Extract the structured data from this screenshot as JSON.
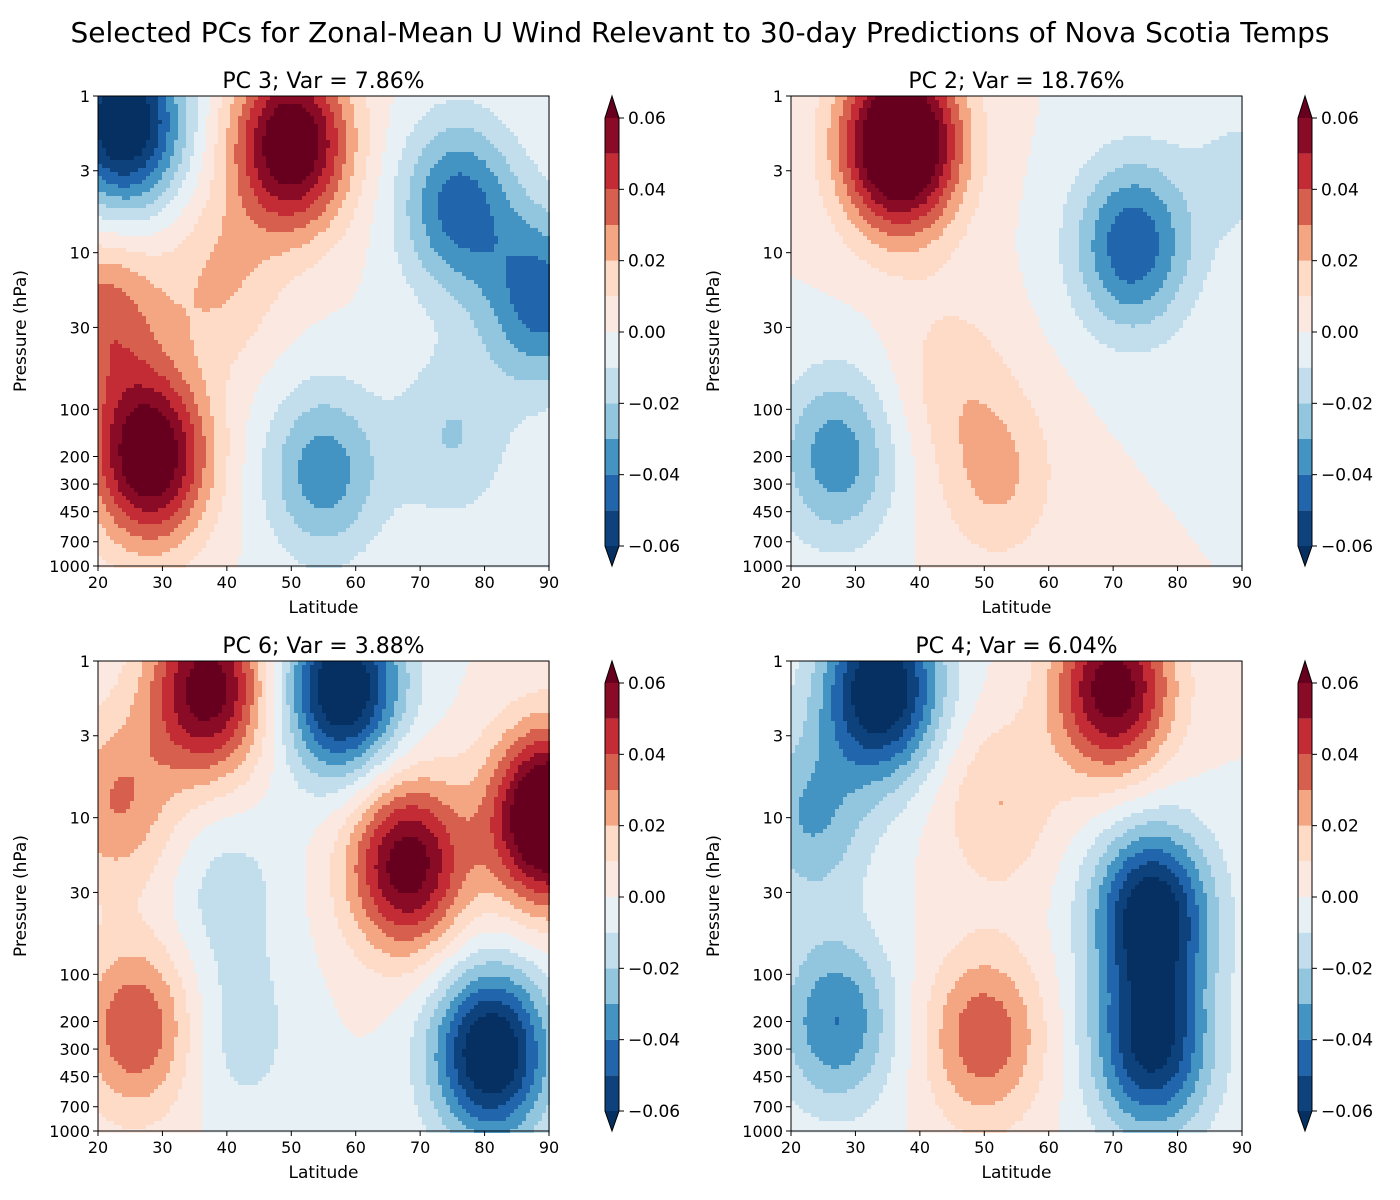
{
  "figure": {
    "title": "Selected PCs for Zonal-Mean U Wind Relevant to 30-day Predictions of Nova Scotia Temps"
  },
  "colormap": {
    "name": "RdBu_r",
    "levels": [
      -0.06,
      -0.05,
      -0.04,
      -0.03,
      -0.02,
      -0.01,
      0.0,
      0.01,
      0.02,
      0.03,
      0.04,
      0.05,
      0.06
    ],
    "colors": [
      "#053061",
      "#0e427d",
      "#2166ac",
      "#4393c3",
      "#92c5de",
      "#c2ddec",
      "#e7f0f5",
      "#fbe9e1",
      "#fddbc7",
      "#f4a582",
      "#d6604d",
      "#c32b35",
      "#8a0b25",
      "#67001f"
    ],
    "tick_values": [
      -0.06,
      -0.04,
      -0.02,
      0.0,
      0.02,
      0.04,
      0.06
    ],
    "tick_labels": [
      "−0.06",
      "−0.04",
      "−0.02",
      "0.00",
      "0.02",
      "0.04",
      "0.06"
    ]
  },
  "chart_data": [
    {
      "type": "heatmap",
      "title": "PC 3; Var = 7.86%",
      "xlabel": "Latitude",
      "ylabel": "Pressure (hPa)",
      "xlim": [
        20,
        90
      ],
      "ylim": [
        1000,
        1
      ],
      "yscale": "log",
      "xticks": [
        "20",
        "30",
        "40",
        "50",
        "60",
        "70",
        "80",
        "90"
      ],
      "yticks": [
        "1",
        "3",
        "10",
        "30",
        "100",
        "200",
        "300",
        "450",
        "700",
        "1000"
      ],
      "anomalies": [
        {
          "lat": 24,
          "p": 1.5,
          "value": -0.075
        },
        {
          "lat": 50,
          "p": 2,
          "value": 0.075
        },
        {
          "lat": 76,
          "p": 5,
          "value": -0.045
        },
        {
          "lat": 28,
          "p": 200,
          "value": 0.075
        },
        {
          "lat": 55,
          "p": 250,
          "value": -0.036
        },
        {
          "lat": 39,
          "p": 15,
          "value": 0.02
        },
        {
          "lat": 21,
          "p": 25,
          "value": 0.035
        },
        {
          "lat": 89,
          "p": 20,
          "value": -0.045
        },
        {
          "lat": 75,
          "p": 150,
          "value": -0.02
        }
      ]
    },
    {
      "type": "heatmap",
      "title": "PC 2; Var = 18.76%",
      "xlabel": "Latitude",
      "ylabel": "Pressure (hPa)",
      "xlim": [
        20,
        90
      ],
      "ylim": [
        1000,
        1
      ],
      "yscale": "log",
      "xticks": [
        "20",
        "30",
        "40",
        "50",
        "60",
        "70",
        "80",
        "90"
      ],
      "yticks": [
        "1",
        "3",
        "10",
        "30",
        "100",
        "200",
        "300",
        "450",
        "700",
        "1000"
      ],
      "anomalies": [
        {
          "lat": 37,
          "p": 2,
          "value": 0.095
        },
        {
          "lat": 73,
          "p": 9,
          "value": -0.048
        },
        {
          "lat": 27,
          "p": 200,
          "value": -0.036
        },
        {
          "lat": 52,
          "p": 260,
          "value": 0.022
        },
        {
          "lat": 45,
          "p": 60,
          "value": 0.014
        },
        {
          "lat": 90,
          "p": 3,
          "value": -0.012
        }
      ]
    },
    {
      "type": "heatmap",
      "title": "PC 6; Var = 3.88%",
      "xlabel": "Latitude",
      "ylabel": "Pressure (hPa)",
      "xlim": [
        20,
        90
      ],
      "ylim": [
        1000,
        1
      ],
      "yscale": "log",
      "xticks": [
        "20",
        "30",
        "40",
        "50",
        "60",
        "70",
        "80",
        "90"
      ],
      "yticks": [
        "1",
        "3",
        "10",
        "30",
        "100",
        "200",
        "300",
        "450",
        "700",
        "1000"
      ],
      "anomalies": [
        {
          "lat": 37,
          "p": 1.5,
          "value": 0.068
        },
        {
          "lat": 58,
          "p": 1.5,
          "value": -0.075
        },
        {
          "lat": 68,
          "p": 20,
          "value": 0.068
        },
        {
          "lat": 81,
          "p": 320,
          "value": -0.075
        },
        {
          "lat": 26,
          "p": 220,
          "value": 0.04
        },
        {
          "lat": 23,
          "p": 8,
          "value": 0.03
        },
        {
          "lat": 90,
          "p": 10,
          "value": 0.09
        },
        {
          "lat": 40,
          "p": 30,
          "value": -0.015
        },
        {
          "lat": 42,
          "p": 250,
          "value": -0.015
        }
      ]
    },
    {
      "type": "heatmap",
      "title": "PC 4; Var = 6.04%",
      "xlabel": "Latitude",
      "ylabel": "Pressure (hPa)",
      "xlim": [
        20,
        90
      ],
      "ylim": [
        1000,
        1
      ],
      "yscale": "log",
      "xticks": [
        "20",
        "30",
        "40",
        "50",
        "60",
        "70",
        "80",
        "90"
      ],
      "yticks": [
        "1",
        "3",
        "10",
        "30",
        "100",
        "200",
        "300",
        "450",
        "700",
        "1000"
      ],
      "anomalies": [
        {
          "lat": 34,
          "p": 1.5,
          "value": -0.075
        },
        {
          "lat": 70,
          "p": 1.5,
          "value": 0.068
        },
        {
          "lat": 76,
          "p": 40,
          "value": -0.07
        },
        {
          "lat": 76,
          "p": 300,
          "value": -0.062
        },
        {
          "lat": 27,
          "p": 200,
          "value": -0.04
        },
        {
          "lat": 50,
          "p": 250,
          "value": 0.038
        },
        {
          "lat": 52,
          "p": 8,
          "value": 0.02
        },
        {
          "lat": 23,
          "p": 10,
          "value": -0.03
        }
      ]
    }
  ]
}
